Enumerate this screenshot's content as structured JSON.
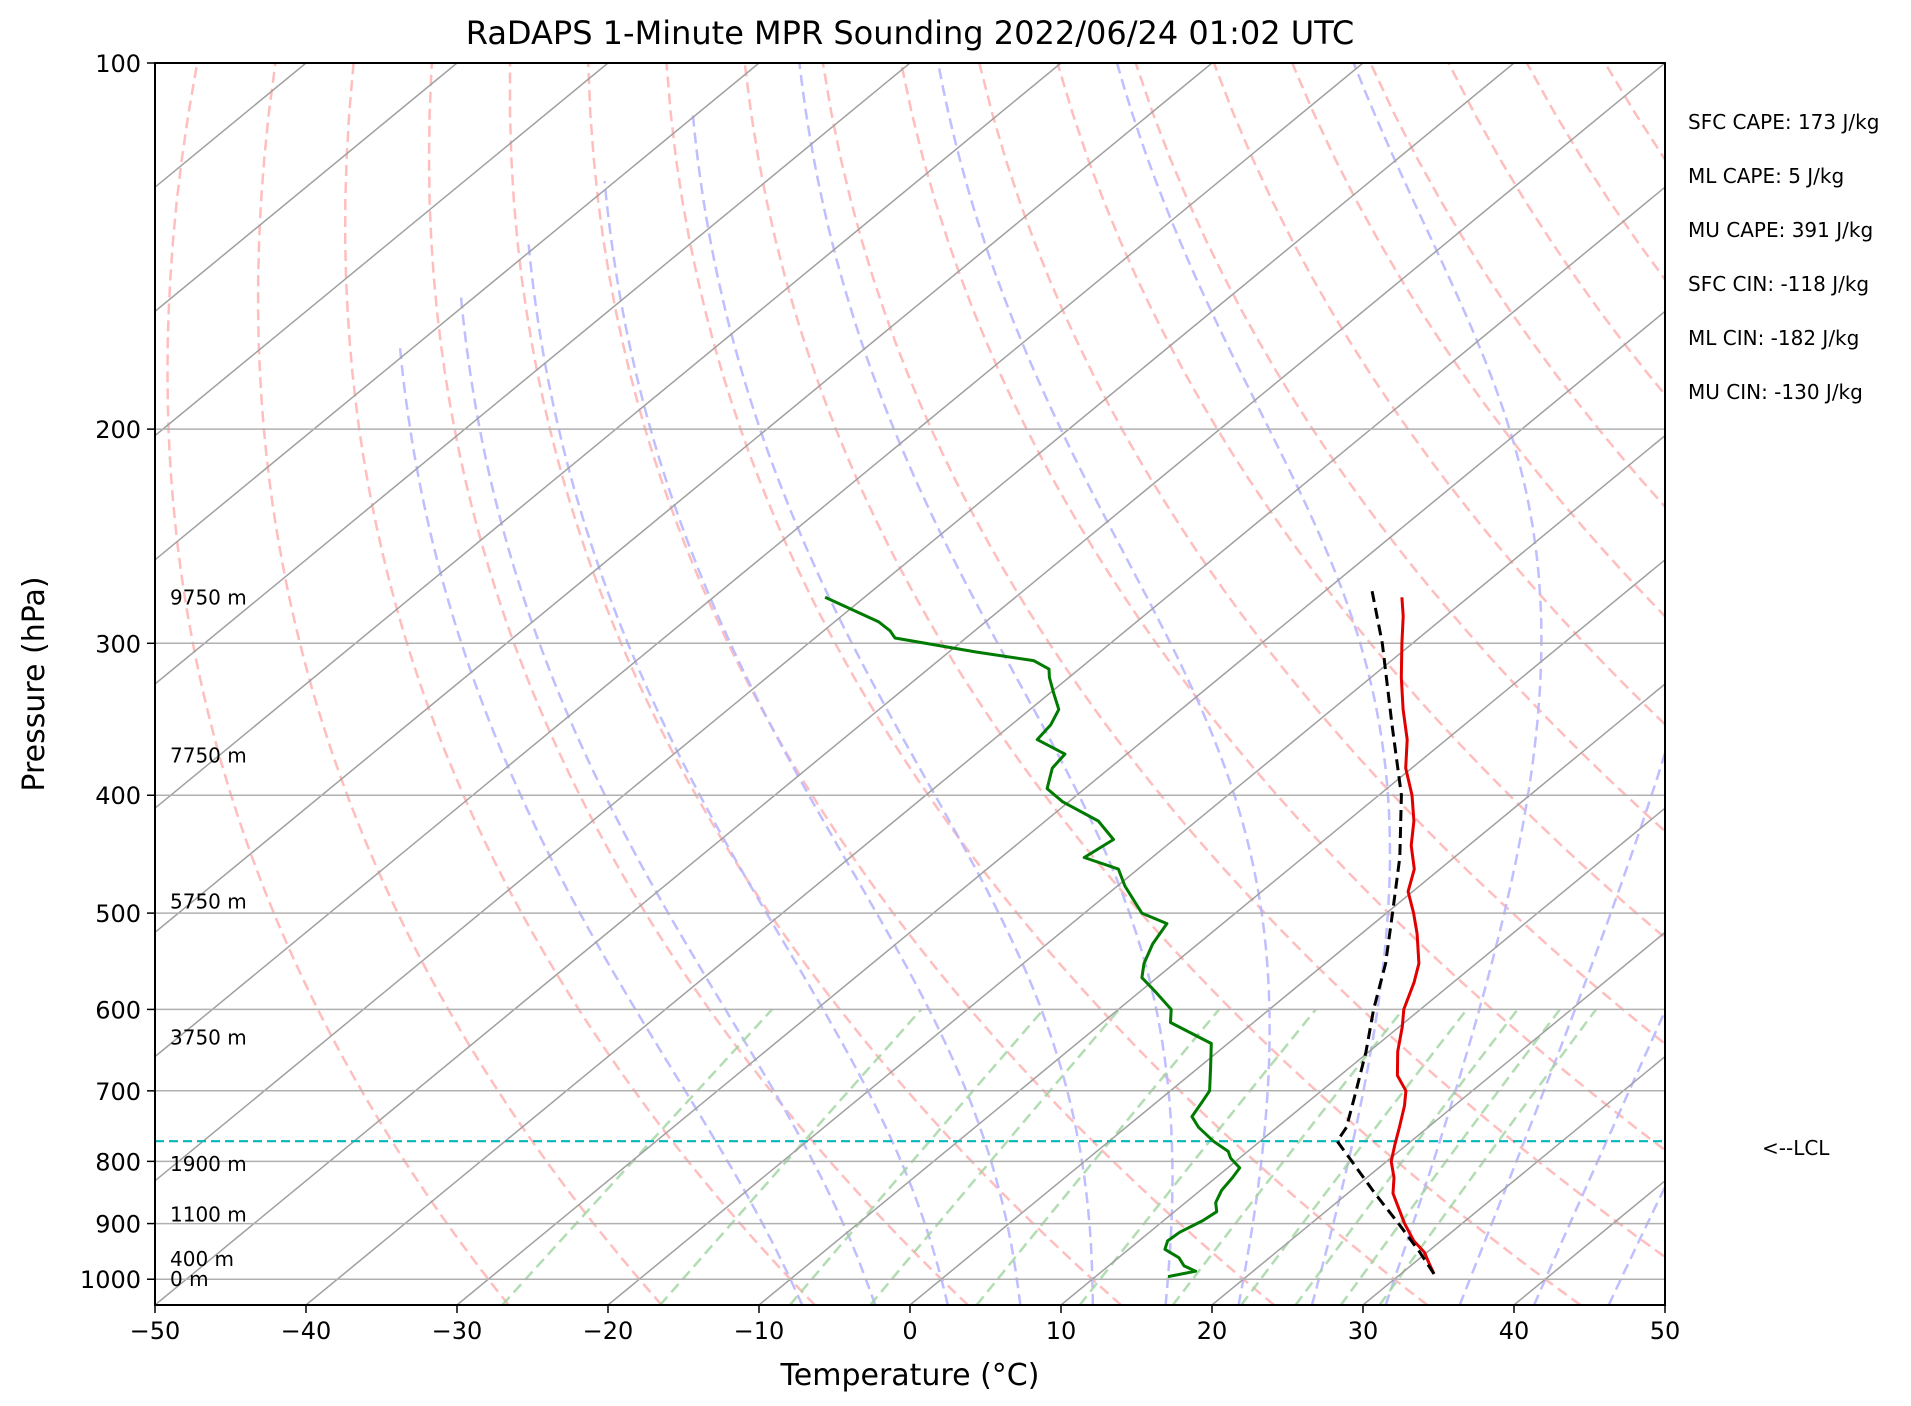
{
  "chart_data": {
    "type": "skew-t",
    "title": "RaDAPS 1-Minute MPR Sounding 2022/06/24 01:02 UTC",
    "xlabel": "Temperature (°C)",
    "ylabel": "Pressure (hPa)",
    "xlim": [
      -50,
      50
    ],
    "ylim_hpa": [
      1050,
      100
    ],
    "log_pressure_axis": true,
    "grid": true,
    "x_ticks": [
      "−50",
      "−40",
      "−30",
      "−20",
      "−10",
      "0",
      "10",
      "20",
      "30",
      "40",
      "50"
    ],
    "x_tick_values": [
      -50,
      -40,
      -30,
      -20,
      -10,
      0,
      10,
      20,
      30,
      40,
      50
    ],
    "y_ticks": [
      "100",
      "200",
      "300",
      "400",
      "500",
      "600",
      "700",
      "800",
      "900",
      "1000"
    ],
    "y_tick_values": [
      100,
      200,
      300,
      400,
      500,
      600,
      700,
      800,
      900,
      1000
    ],
    "height_labels": [
      {
        "text": "9750 m",
        "pressure": 275
      },
      {
        "text": "7750 m",
        "pressure": 371
      },
      {
        "text": "5750 m",
        "pressure": 489
      },
      {
        "text": "3750 m",
        "pressure": 633
      },
      {
        "text": "1900 m",
        "pressure": 804
      },
      {
        "text": "1100 m",
        "pressure": 885
      },
      {
        "text": "400 m",
        "pressure": 962
      },
      {
        "text": "0 m",
        "pressure": 1000
      }
    ],
    "indices": [
      "SFC CAPE: 173 J/kg",
      "ML CAPE: 5 J/kg",
      "MU CAPE: 391 J/kg",
      "SFC CIN: -118 J/kg",
      "ML CIN: -182 J/kg",
      "MU CIN: -130 J/kg"
    ],
    "lcl": {
      "label": "<--LCL",
      "pressure": 770
    },
    "colors": {
      "temperature": "#e00000",
      "dewpoint": "#007a00",
      "parcel": "#000000",
      "lcl": "#00b8b8",
      "dry_adiabat": "#ffb3b3",
      "moist_adiabat": "#b8b8ff",
      "mixing_ratio": "#9fd49f",
      "isotherm": "#a0a0a0",
      "grid": "#b0b0b0"
    },
    "series": [
      {
        "key": "temperature",
        "points": [
          {
            "p": 990,
            "t": 32.2
          },
          {
            "p": 970,
            "t": 31.0
          },
          {
            "p": 950,
            "t": 29.8
          },
          {
            "p": 930,
            "t": 28.2
          },
          {
            "p": 900,
            "t": 26.2
          },
          {
            "p": 870,
            "t": 24.3
          },
          {
            "p": 850,
            "t": 23.0
          },
          {
            "p": 825,
            "t": 21.8
          },
          {
            "p": 800,
            "t": 20.3
          },
          {
            "p": 775,
            "t": 19.2
          },
          {
            "p": 750,
            "t": 18.1
          },
          {
            "p": 720,
            "t": 16.7
          },
          {
            "p": 700,
            "t": 15.6
          },
          {
            "p": 680,
            "t": 13.8
          },
          {
            "p": 650,
            "t": 11.9
          },
          {
            "p": 620,
            "t": 10.2
          },
          {
            "p": 600,
            "t": 8.9
          },
          {
            "p": 570,
            "t": 7.4
          },
          {
            "p": 550,
            "t": 6.2
          },
          {
            "p": 520,
            "t": 3.7
          },
          {
            "p": 500,
            "t": 1.8
          },
          {
            "p": 480,
            "t": -0.3
          },
          {
            "p": 460,
            "t": -1.7
          },
          {
            "p": 440,
            "t": -3.8
          },
          {
            "p": 420,
            "t": -5.6
          },
          {
            "p": 400,
            "t": -7.8
          },
          {
            "p": 380,
            "t": -10.4
          },
          {
            "p": 360,
            "t": -12.6
          },
          {
            "p": 340,
            "t": -15.3
          },
          {
            "p": 320,
            "t": -18.0
          },
          {
            "p": 300,
            "t": -20.7
          },
          {
            "p": 285,
            "t": -22.8
          },
          {
            "p": 275,
            "t": -24.4
          }
        ]
      },
      {
        "key": "dewpoint",
        "points": [
          {
            "p": 995,
            "t": 14.8
          },
          {
            "p": 985,
            "t": 16.2
          },
          {
            "p": 975,
            "t": 15.0
          },
          {
            "p": 960,
            "t": 14.0
          },
          {
            "p": 945,
            "t": 12.4
          },
          {
            "p": 930,
            "t": 11.9
          },
          {
            "p": 915,
            "t": 12.0
          },
          {
            "p": 895,
            "t": 12.6
          },
          {
            "p": 880,
            "t": 12.8
          },
          {
            "p": 865,
            "t": 12.0
          },
          {
            "p": 845,
            "t": 11.4
          },
          {
            "p": 825,
            "t": 11.1
          },
          {
            "p": 810,
            "t": 10.8
          },
          {
            "p": 795,
            "t": 9.4
          },
          {
            "p": 785,
            "t": 8.7
          },
          {
            "p": 770,
            "t": 6.9
          },
          {
            "p": 750,
            "t": 4.8
          },
          {
            "p": 735,
            "t": 3.5
          },
          {
            "p": 715,
            "t": 3.0
          },
          {
            "p": 700,
            "t": 2.6
          },
          {
            "p": 670,
            "t": 0.8
          },
          {
            "p": 640,
            "t": -1.1
          },
          {
            "p": 615,
            "t": -5.5
          },
          {
            "p": 600,
            "t": -6.5
          },
          {
            "p": 580,
            "t": -9.0
          },
          {
            "p": 565,
            "t": -11.0
          },
          {
            "p": 550,
            "t": -12.0
          },
          {
            "p": 530,
            "t": -13.0
          },
          {
            "p": 510,
            "t": -13.7
          },
          {
            "p": 500,
            "t": -16.2
          },
          {
            "p": 475,
            "t": -19.5
          },
          {
            "p": 460,
            "t": -21.3
          },
          {
            "p": 450,
            "t": -24.5
          },
          {
            "p": 435,
            "t": -24.0
          },
          {
            "p": 420,
            "t": -26.5
          },
          {
            "p": 405,
            "t": -30.4
          },
          {
            "p": 395,
            "t": -32.5
          },
          {
            "p": 380,
            "t": -33.8
          },
          {
            "p": 370,
            "t": -34.1
          },
          {
            "p": 360,
            "t": -37.1
          },
          {
            "p": 350,
            "t": -37.4
          },
          {
            "p": 340,
            "t": -38.1
          },
          {
            "p": 330,
            "t": -39.7
          },
          {
            "p": 320,
            "t": -41.3
          },
          {
            "p": 315,
            "t": -42.0
          },
          {
            "p": 310,
            "t": -43.7
          },
          {
            "p": 305,
            "t": -48.2
          },
          {
            "p": 297,
            "t": -54.7
          },
          {
            "p": 293,
            "t": -55.6
          },
          {
            "p": 288,
            "t": -57.1
          },
          {
            "p": 275,
            "t": -62.6
          }
        ]
      },
      {
        "key": "parcel",
        "points": [
          {
            "p": 990,
            "t": 32.2
          },
          {
            "p": 950,
            "t": 29.5
          },
          {
            "p": 900,
            "t": 25.8
          },
          {
            "p": 850,
            "t": 21.8
          },
          {
            "p": 800,
            "t": 17.7
          },
          {
            "p": 770,
            "t": 15.1
          },
          {
            "p": 750,
            "t": 14.6
          },
          {
            "p": 700,
            "t": 12.3
          },
          {
            "p": 650,
            "t": 9.8
          },
          {
            "p": 600,
            "t": 6.9
          },
          {
            "p": 550,
            "t": 4.0
          },
          {
            "p": 500,
            "t": 0.4
          },
          {
            "p": 450,
            "t": -3.6
          },
          {
            "p": 400,
            "t": -8.5
          },
          {
            "p": 350,
            "t": -14.8
          },
          {
            "p": 300,
            "t": -22.0
          },
          {
            "p": 270,
            "t": -27.2
          }
        ]
      }
    ]
  }
}
